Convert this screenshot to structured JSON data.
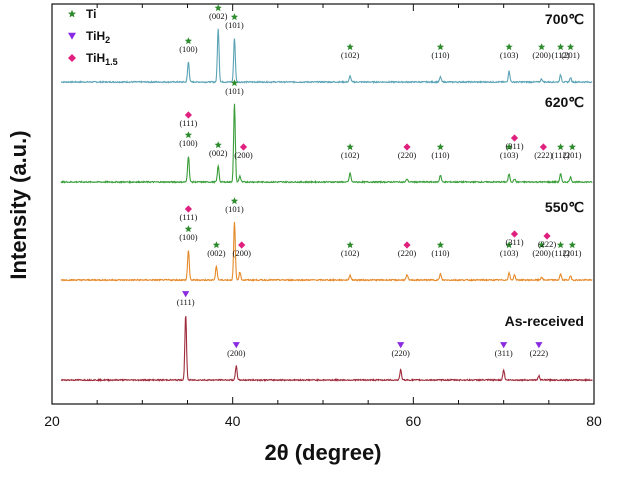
{
  "chart_data": {
    "type": "line",
    "xlabel": "2θ (degree)",
    "ylabel": "Intensity (a.u.)",
    "xlim": [
      20,
      80
    ],
    "xticks": [
      "20",
      "40",
      "60",
      "80"
    ],
    "legend": {
      "position": "top-left",
      "entries": [
        {
          "key": "Ti",
          "label": "Ti",
          "marker": "star",
          "color": "#2e8b2e"
        },
        {
          "key": "TiH2",
          "label_main": "TiH",
          "label_sub": "2",
          "marker": "triangle-down",
          "color": "#8a2be2"
        },
        {
          "key": "TiH15",
          "label_main": "TiH",
          "label_sub": "1.5",
          "marker": "diamond",
          "color": "#e0207f"
        }
      ]
    },
    "series": [
      {
        "name": "700℃",
        "color": "#5ba3b5",
        "baseline": 82,
        "peaks": [
          {
            "x": 35.1,
            "h": 20
          },
          {
            "x": 38.4,
            "h": 53
          },
          {
            "x": 40.2,
            "h": 44
          },
          {
            "x": 53.0,
            "h": 6
          },
          {
            "x": 63.0,
            "h": 5
          },
          {
            "x": 70.6,
            "h": 11
          },
          {
            "x": 74.2,
            "h": 3
          },
          {
            "x": 76.3,
            "h": 7
          },
          {
            "x": 77.4,
            "h": 4
          }
        ],
        "labels": [
          {
            "x": 35.1,
            "text": "(100)",
            "marks": [
              "Ti"
            ]
          },
          {
            "x": 38.4,
            "text": "(002)",
            "marks": [
              "Ti"
            ]
          },
          {
            "x": 40.2,
            "text": "(101)",
            "marks": [
              "Ti"
            ]
          },
          {
            "x": 53.0,
            "text": "(102)",
            "marks": [
              "Ti"
            ]
          },
          {
            "x": 63.0,
            "text": "(110)",
            "marks": [
              "Ti"
            ]
          },
          {
            "x": 70.6,
            "text": "(103)",
            "marks": [
              "Ti"
            ]
          },
          {
            "x": 74.2,
            "text": "(200)",
            "marks": [
              "Ti"
            ]
          },
          {
            "x": 76.3,
            "text": "(112)",
            "marks": [
              "Ti"
            ]
          },
          {
            "x": 77.4,
            "text": "(201)",
            "marks": [
              "Ti"
            ]
          }
        ]
      },
      {
        "name": "620℃",
        "color": "#3a9e3a",
        "baseline": 182,
        "peaks": [
          {
            "x": 35.1,
            "h": 26
          },
          {
            "x": 38.4,
            "h": 16
          },
          {
            "x": 40.2,
            "h": 78
          },
          {
            "x": 40.8,
            "h": 6
          },
          {
            "x": 53.0,
            "h": 9
          },
          {
            "x": 59.3,
            "h": 3
          },
          {
            "x": 63.0,
            "h": 7
          },
          {
            "x": 70.6,
            "h": 8
          },
          {
            "x": 71.2,
            "h": 3
          },
          {
            "x": 76.3,
            "h": 8
          },
          {
            "x": 77.4,
            "h": 5
          }
        ],
        "labels": [
          {
            "x": 35.1,
            "text": "(100)",
            "marks": [
              "Ti"
            ]
          },
          {
            "x": 35.1,
            "text": "(111)",
            "marks": [
              "TiH15"
            ],
            "upper": true
          },
          {
            "x": 38.4,
            "text": "(002)",
            "marks": [
              "Ti"
            ]
          },
          {
            "x": 40.2,
            "text": "(101)",
            "marks": [
              "Ti"
            ],
            "top": true
          },
          {
            "x": 41.2,
            "text": "(200)",
            "marks": [
              "TiH15"
            ]
          },
          {
            "x": 53.0,
            "text": "(102)",
            "marks": [
              "Ti"
            ]
          },
          {
            "x": 59.3,
            "text": "(220)",
            "marks": [
              "TiH15"
            ]
          },
          {
            "x": 63.0,
            "text": "(110)",
            "marks": [
              "Ti"
            ]
          },
          {
            "x": 70.6,
            "text": "(103)",
            "marks": [
              "Ti"
            ]
          },
          {
            "x": 71.2,
            "text": "(311)",
            "marks": [
              "TiH15"
            ],
            "upper": true
          },
          {
            "x": 74.4,
            "text": "(222)",
            "marks": [
              "TiH15"
            ]
          },
          {
            "x": 76.3,
            "text": "(112)",
            "marks": [
              "Ti"
            ]
          },
          {
            "x": 77.6,
            "text": "(201)",
            "marks": [
              "Ti"
            ]
          }
        ]
      },
      {
        "name": "550℃",
        "color": "#e58a2a",
        "baseline": 280,
        "peaks": [
          {
            "x": 35.1,
            "h": 30
          },
          {
            "x": 38.2,
            "h": 14
          },
          {
            "x": 40.2,
            "h": 58
          },
          {
            "x": 40.8,
            "h": 8
          },
          {
            "x": 53.0,
            "h": 5
          },
          {
            "x": 59.3,
            "h": 5
          },
          {
            "x": 63.0,
            "h": 6
          },
          {
            "x": 70.6,
            "h": 7
          },
          {
            "x": 71.2,
            "h": 5
          },
          {
            "x": 74.2,
            "h": 3
          },
          {
            "x": 76.3,
            "h": 6
          },
          {
            "x": 77.4,
            "h": 4
          }
        ],
        "labels": [
          {
            "x": 35.1,
            "text": "(100)",
            "marks": [
              "Ti"
            ]
          },
          {
            "x": 35.1,
            "text": "(111)",
            "marks": [
              "TiH15"
            ],
            "upper": true
          },
          {
            "x": 38.2,
            "text": "(002)",
            "marks": [
              "Ti"
            ]
          },
          {
            "x": 40.2,
            "text": "(101)",
            "marks": [
              "Ti"
            ],
            "top": true
          },
          {
            "x": 41.0,
            "text": "(200)",
            "marks": [
              "TiH15"
            ]
          },
          {
            "x": 53.0,
            "text": "(102)",
            "marks": [
              "Ti"
            ]
          },
          {
            "x": 59.3,
            "text": "(220)",
            "marks": [
              "TiH15"
            ]
          },
          {
            "x": 63.0,
            "text": "(110)",
            "marks": [
              "Ti"
            ]
          },
          {
            "x": 70.6,
            "text": "(103)",
            "marks": [
              "Ti"
            ]
          },
          {
            "x": 71.2,
            "text": "(311)",
            "marks": [
              "TiH15"
            ],
            "upper": true
          },
          {
            "x": 74.2,
            "text": "(200)",
            "marks": [
              "Ti"
            ]
          },
          {
            "x": 74.8,
            "text": "(222)",
            "marks": [
              "TiH15"
            ],
            "upper": true
          },
          {
            "x": 76.3,
            "text": "(112)",
            "marks": [
              "Ti"
            ]
          },
          {
            "x": 77.6,
            "text": "(201)",
            "marks": [
              "Ti"
            ]
          }
        ]
      },
      {
        "name": "As-received",
        "color": "#9e2a3a",
        "baseline": 380,
        "peaks": [
          {
            "x": 34.8,
            "h": 65
          },
          {
            "x": 40.4,
            "h": 14
          },
          {
            "x": 58.6,
            "h": 10
          },
          {
            "x": 70.0,
            "h": 10
          },
          {
            "x": 73.9,
            "h": 4
          }
        ],
        "labels": [
          {
            "x": 34.8,
            "text": "(111)",
            "marks": [
              "TiH2"
            ]
          },
          {
            "x": 40.4,
            "text": "(200)",
            "marks": [
              "TiH2"
            ]
          },
          {
            "x": 58.6,
            "text": "(220)",
            "marks": [
              "TiH2"
            ]
          },
          {
            "x": 70.0,
            "text": "(311)",
            "marks": [
              "TiH2"
            ]
          },
          {
            "x": 73.9,
            "text": "(222)",
            "marks": [
              "TiH2"
            ]
          }
        ]
      }
    ]
  }
}
